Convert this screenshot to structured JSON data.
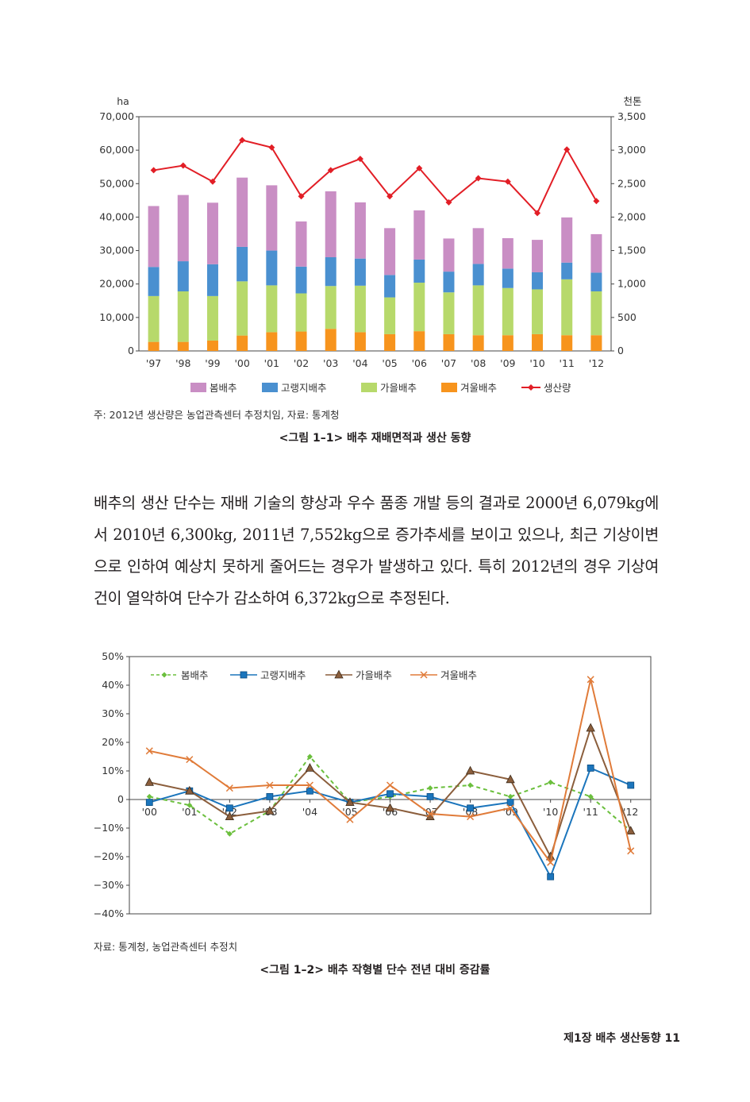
{
  "chart_data": [
    {
      "type": "bar",
      "stacked": true,
      "categories": [
        "'97",
        "'98",
        "'99",
        "'00",
        "'01",
        "'02",
        "'03",
        "'04",
        "'05",
        "'06",
        "'07",
        "'08",
        "'09",
        "'10",
        "'11",
        "'12"
      ],
      "series": [
        {
          "name": "겨울배추",
          "color": "#f7941d",
          "values": [
            2700,
            2700,
            3100,
            4600,
            5600,
            5800,
            6600,
            5600,
            5000,
            5900,
            5000,
            4700,
            4700,
            5000,
            4700,
            4700
          ]
        },
        {
          "name": "가을배추",
          "color": "#b7d96b",
          "values": [
            13700,
            15100,
            13300,
            16200,
            14000,
            11400,
            12800,
            13900,
            11000,
            14500,
            12500,
            14900,
            14100,
            13400,
            16700,
            13100
          ]
        },
        {
          "name": "고랭지배추",
          "color": "#4a90d0",
          "values": [
            8700,
            9000,
            9500,
            10300,
            10400,
            8000,
            8600,
            8100,
            6700,
            6900,
            6200,
            6400,
            5800,
            5100,
            5000,
            5600
          ]
        },
        {
          "name": "봄배추",
          "color": "#c98ec4",
          "values": [
            18200,
            19800,
            18400,
            20700,
            19500,
            13500,
            19700,
            16800,
            14000,
            14700,
            9900,
            10700,
            9100,
            9700,
            13500,
            11500
          ]
        }
      ],
      "line_series": {
        "name": "생산량",
        "color": "#e21e26",
        "values": [
          2700,
          2770,
          2530,
          3150,
          3040,
          2310,
          2700,
          2870,
          2310,
          2730,
          2220,
          2580,
          2530,
          2060,
          3010,
          2240
        ]
      },
      "ylabel_left": "ha",
      "ylabel_right": "천톤",
      "ylim_left": [
        0,
        70000
      ],
      "ylim_right": [
        0,
        3500
      ],
      "yticks_left": [
        "70,000",
        "60,000",
        "50,000",
        "40,000",
        "30,000",
        "20,000",
        "10,000",
        "0"
      ],
      "yticks_right": [
        "3,500",
        "3,000",
        "2,500",
        "2,000",
        "1,500",
        "1,000",
        "500",
        "0"
      ],
      "legend_order": [
        "봄배추",
        "고랭지배추",
        "가을배추",
        "겨울배추",
        "생산량"
      ],
      "legend_placement": "bottom",
      "grid": false
    },
    {
      "type": "line",
      "categories": [
        "'00",
        "'01",
        "'02",
        "'03",
        "'04",
        "'05",
        "'06",
        "'07",
        "'08",
        "'09",
        "'10",
        "'11",
        "'12"
      ],
      "series": [
        {
          "name": "봄배추",
          "color": "#6bbf3d",
          "dashed": true,
          "marker": "diamond",
          "values": [
            1,
            -2,
            -12,
            -4,
            15,
            -1,
            1,
            4,
            5,
            1,
            6,
            1,
            -11
          ]
        },
        {
          "name": "고랭지배추",
          "color": "#1b75bc",
          "marker": "square",
          "values": [
            -1,
            3,
            -3,
            1,
            3,
            -1,
            2,
            1,
            -3,
            -1,
            -27,
            11,
            5
          ]
        },
        {
          "name": "가을배추",
          "color": "#8b5e3c",
          "marker": "triangle",
          "values": [
            6,
            3,
            -6,
            -4,
            11,
            -1,
            -3,
            -6,
            10,
            7,
            -20,
            25,
            -11
          ]
        },
        {
          "name": "겨울배추",
          "color": "#e07b39",
          "marker": "x",
          "values": [
            17,
            14,
            4,
            5,
            5,
            -7,
            5,
            -5,
            -6,
            -3,
            -22,
            42,
            -18
          ]
        }
      ],
      "ylim": [
        -40,
        50
      ],
      "yticks": [
        "50%",
        "40%",
        "30%",
        "20%",
        "10%",
        "0",
        "−10%",
        "−20%",
        "−30%",
        "−40%"
      ],
      "legend_placement": "top-left",
      "grid": false
    }
  ],
  "text": {
    "note1": "주: 2012년 생산량은 농업관측센터 추정치임, 자료: 통계청",
    "caption1": "<그림 1–1> 배추 재배면적과 생산 동향",
    "paragraph": "배추의 생산 단수는 재배 기술의 향상과 우수 품종 개발 등의 결과로 2000년 6,079kg에서 2010년 6,300kg, 2011년 7,552kg으로 증가추세를 보이고 있으나, 최근 기상이변으로 인하여 예상치 못하게 줄어드는 경우가 발생하고 있다. 특히 2012년의 경우 기상여건이 열악하여 단수가 감소하여 6,372kg으로 추정된다.",
    "note2": "자료: 통계청, 농업관측센터 추정치",
    "caption2": "<그림 1–2> 배추 작형별 단수 전년 대비 증감률",
    "footer": "제1장 배추 생산동향 11"
  }
}
